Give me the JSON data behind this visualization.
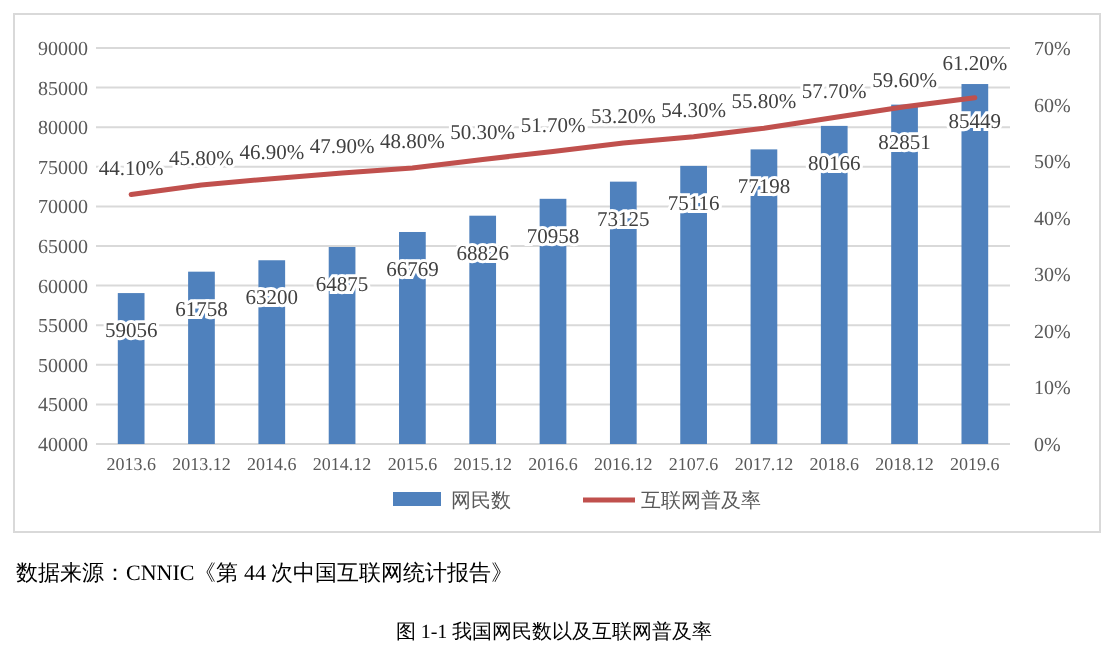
{
  "chart_data": {
    "type": "bar",
    "categories": [
      "2013.6",
      "2013.12",
      "2014.6",
      "2014.12",
      "2015.6",
      "2015.12",
      "2016.6",
      "2016.12",
      "2107.6",
      "2017.12",
      "2018.6",
      "2018.12",
      "2019.6"
    ],
    "series": [
      {
        "name": "网民数",
        "color": "#4f81bd",
        "values": [
          59056,
          61758,
          63200,
          64875,
          66769,
          68826,
          70958,
          73125,
          75116,
          77198,
          80166,
          82851,
          85449
        ]
      },
      {
        "name": "互联网普及率",
        "type": "line",
        "axis": "y2",
        "color": "#c0504d",
        "values": [
          44.1,
          45.8,
          46.9,
          47.9,
          48.8,
          50.3,
          51.7,
          53.2,
          54.3,
          55.8,
          57.7,
          59.6,
          61.2
        ],
        "value_labels": [
          "44.10%",
          "45.80%",
          "46.90%",
          "47.90%",
          "48.80%",
          "50.30%",
          "51.70%",
          "53.20%",
          "54.30%",
          "55.80%",
          "57.70%",
          "59.60%",
          "61.20%"
        ]
      }
    ],
    "ylim": [
      40000,
      90000
    ],
    "yticks": [
      40000,
      45000,
      50000,
      55000,
      60000,
      65000,
      70000,
      75000,
      80000,
      85000,
      90000
    ],
    "y2lim": [
      0,
      70
    ],
    "y2ticks": [
      {
        "value": 0,
        "label": "0%"
      },
      {
        "value": 10,
        "label": "10%"
      },
      {
        "value": 20,
        "label": "20%"
      },
      {
        "value": 30,
        "label": "30%"
      },
      {
        "value": 40,
        "label": "40%"
      },
      {
        "value": 50,
        "label": "50%"
      },
      {
        "value": 60,
        "label": "60%"
      },
      {
        "value": 70,
        "label": "70%"
      }
    ],
    "data_labels": true,
    "grid": "y",
    "legend": "bottom",
    "line_style": "solid",
    "marker": "none",
    "annotations": [
      "数据来源：CNNIC《第 44 次中国互联网统计报告》",
      "图 1-1  我国网民数以及互联网普及率"
    ]
  }
}
